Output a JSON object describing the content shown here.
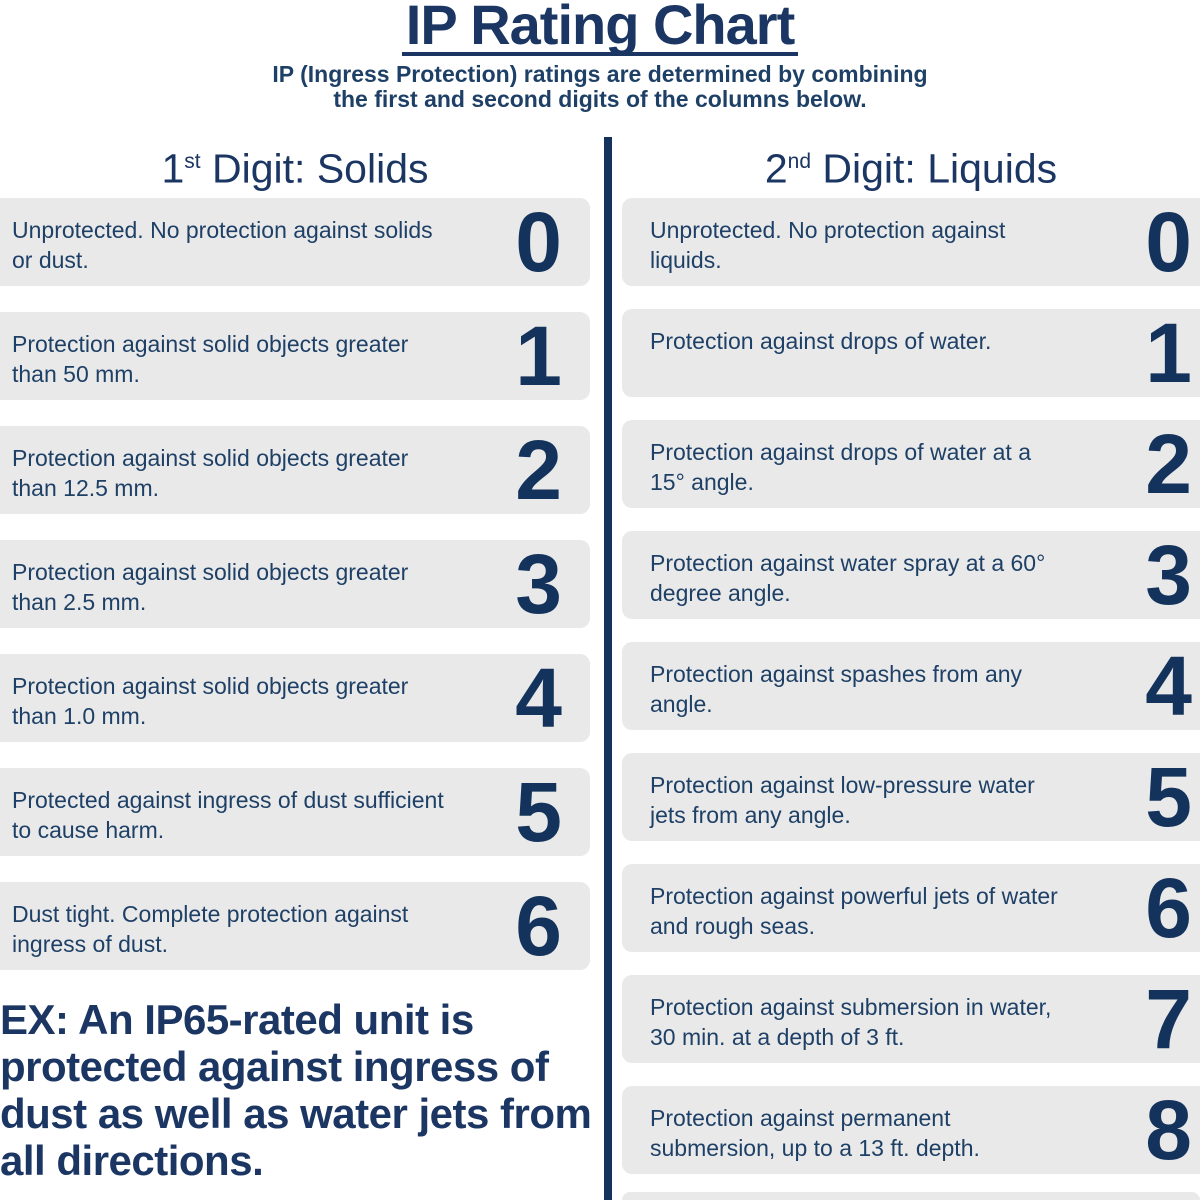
{
  "header": {
    "title": "IP Rating Chart",
    "subtitle_lines": [
      "IP (Ingress Protection) ratings are determined by combining",
      "the first and second digits of the columns below."
    ]
  },
  "columns": {
    "solids": {
      "heading_number": "1",
      "heading_ordinal": "st",
      "heading_rest": " Digit: Solids",
      "rows": [
        {
          "digit": "0",
          "description": "Unprotected. No protection against solids or dust."
        },
        {
          "digit": "1",
          "description": "Protection against solid objects greater than 50 mm."
        },
        {
          "digit": "2",
          "description": "Protection against solid objects greater than 12.5 mm."
        },
        {
          "digit": "3",
          "description": "Protection against solid objects greater than 2.5 mm."
        },
        {
          "digit": "4",
          "description": "Protection against solid objects greater than 1.0 mm."
        },
        {
          "digit": "5",
          "description": "Protected against ingress of dust sufficient to cause harm."
        },
        {
          "digit": "6",
          "description": "Dust tight. Complete protection against ingress of dust."
        }
      ]
    },
    "liquids": {
      "heading_number": "2",
      "heading_ordinal": "nd",
      "heading_rest": " Digit: Liquids",
      "rows": [
        {
          "digit": "0",
          "description": "Unprotected. No protection against liquids."
        },
        {
          "digit": "1",
          "description": "Protection against drops of water."
        },
        {
          "digit": "2",
          "description": "Protection against drops of water at a 15° angle."
        },
        {
          "digit": "3",
          "description": "Protection against water spray at a 60° degree angle."
        },
        {
          "digit": "4",
          "description": "Protection against spashes from any angle."
        },
        {
          "digit": "5",
          "description": "Protection against low-pressure water jets from any angle."
        },
        {
          "digit": "6",
          "description": "Protection against powerful jets of water and rough seas."
        },
        {
          "digit": "7",
          "description": "Protection against submersion in water, 30 min. at a depth of 3 ft."
        },
        {
          "digit": "8",
          "description": "Protection against permanent submersion, up to a 13 ft. depth."
        }
      ]
    }
  },
  "example": {
    "text": "EX: An IP65-rated unit is protected against ingress of dust as well as water jets from all directions."
  },
  "colors": {
    "navy_title": "#1c3663",
    "navy_text": "#1e4066",
    "navy_digit": "#14335c",
    "row_background": "#e9e9e9",
    "page_background": "#ffffff"
  }
}
